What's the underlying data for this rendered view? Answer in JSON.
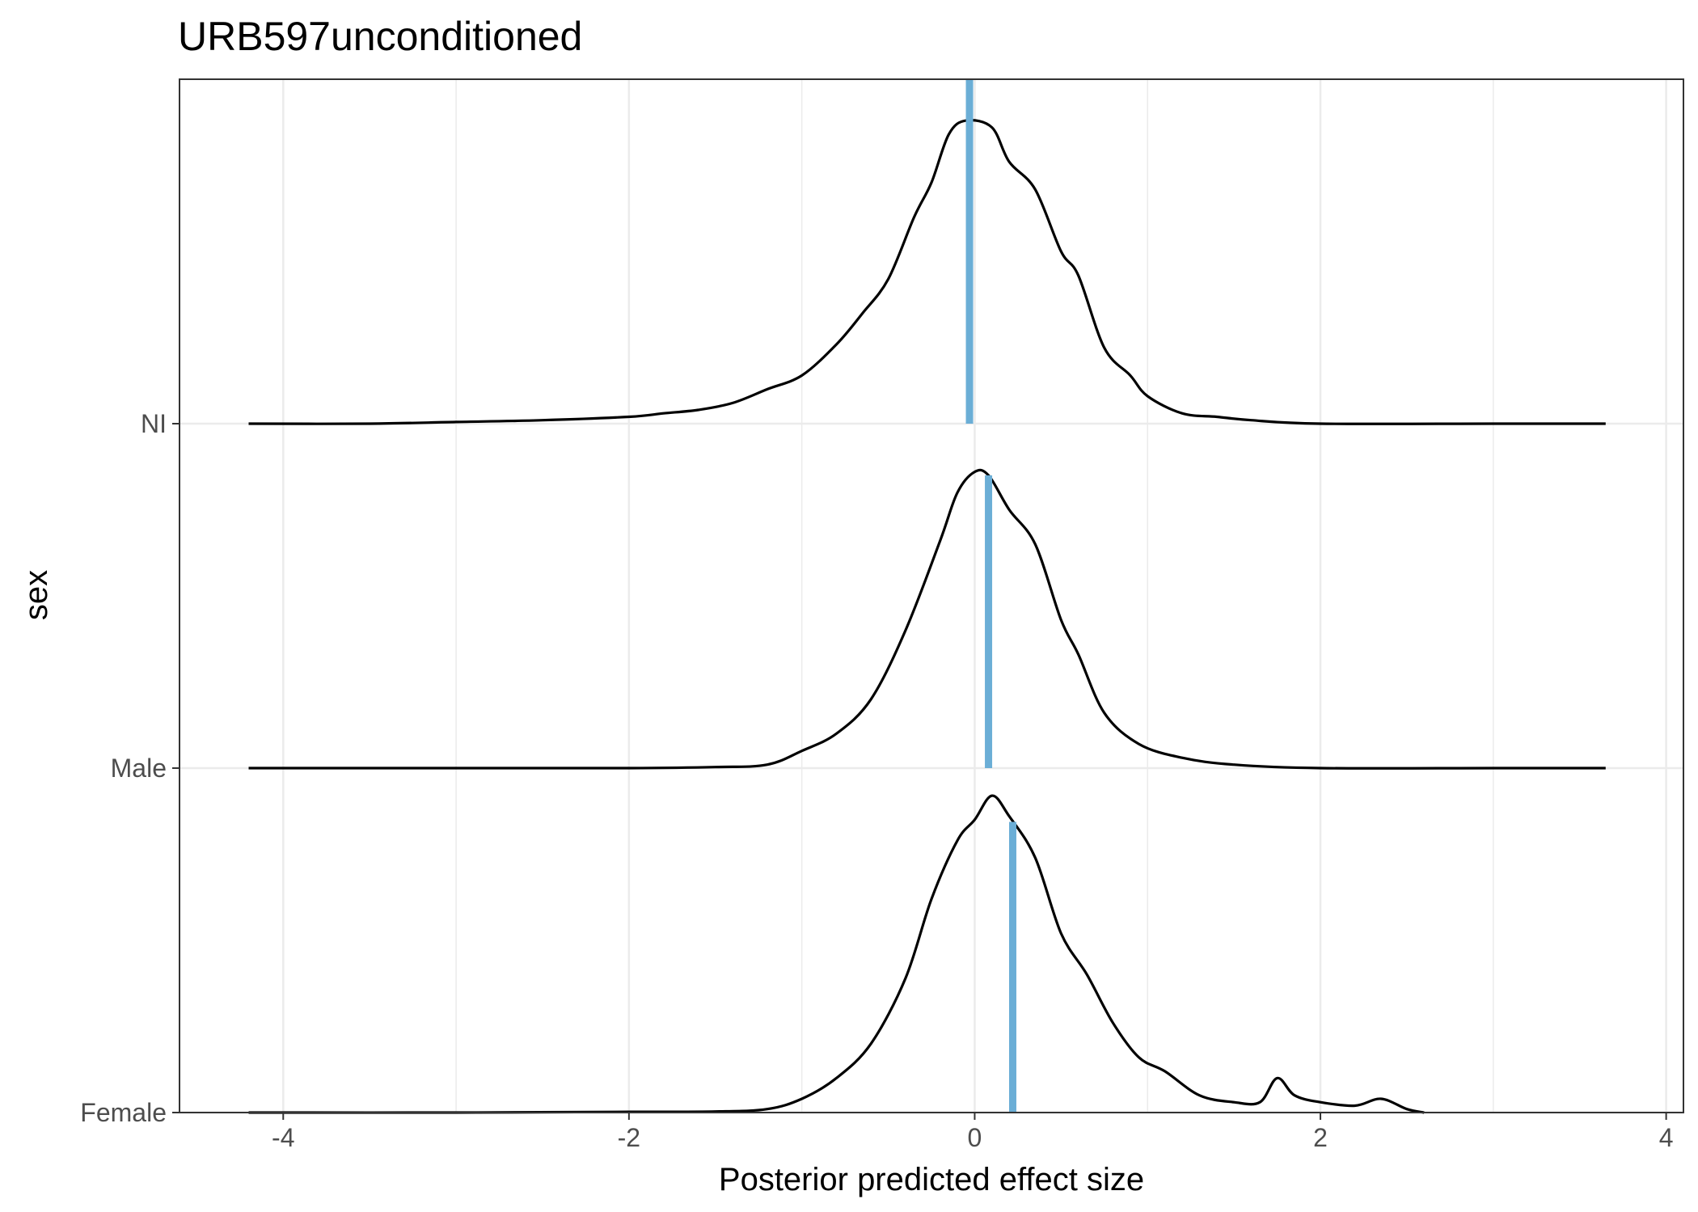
{
  "chart_data": {
    "type": "ridgeline-density",
    "title": "URB597unconditioned",
    "xlabel": "Posterior predicted effect size",
    "ylabel": "sex",
    "xlim": [
      -4.6,
      4.1
    ],
    "x_ticks": [
      -4,
      -2,
      0,
      2,
      4
    ],
    "x_tick_labels": [
      "-4",
      "-2",
      "0",
      "2",
      "4"
    ],
    "categories": [
      "Female",
      "Male",
      "NI"
    ],
    "grid": true,
    "colors": {
      "density_line": "#000000",
      "median_line": "#6baed6",
      "grid": "#ebebeb",
      "panel_border": "#333333"
    },
    "series": [
      {
        "name": "NI",
        "median": -0.03,
        "x": [
          -4.2,
          -3.5,
          -3.0,
          -2.5,
          -2.0,
          -1.8,
          -1.6,
          -1.4,
          -1.2,
          -1.0,
          -0.8,
          -0.65,
          -0.5,
          -0.35,
          -0.25,
          -0.15,
          -0.05,
          0.1,
          0.2,
          0.35,
          0.5,
          0.6,
          0.75,
          0.9,
          1.0,
          1.2,
          1.4,
          1.6,
          2.0,
          3.0,
          3.65
        ],
        "y": [
          0.0,
          0.0,
          0.005,
          0.01,
          0.02,
          0.03,
          0.04,
          0.06,
          0.1,
          0.14,
          0.23,
          0.32,
          0.42,
          0.6,
          0.7,
          0.84,
          0.88,
          0.86,
          0.76,
          0.68,
          0.5,
          0.43,
          0.22,
          0.14,
          0.08,
          0.03,
          0.02,
          0.01,
          0.0,
          0.0,
          0.0
        ]
      },
      {
        "name": "Male",
        "median": 0.08,
        "x": [
          -4.2,
          -3.0,
          -2.0,
          -1.5,
          -1.2,
          -1.0,
          -0.8,
          -0.6,
          -0.4,
          -0.2,
          -0.1,
          0.0,
          0.08,
          0.2,
          0.35,
          0.5,
          0.6,
          0.75,
          0.95,
          1.2,
          1.5,
          2.0,
          3.0,
          3.65
        ],
        "y": [
          0.0,
          0.0,
          0.0,
          0.003,
          0.01,
          0.05,
          0.1,
          0.2,
          0.4,
          0.66,
          0.8,
          0.86,
          0.85,
          0.75,
          0.65,
          0.43,
          0.33,
          0.16,
          0.07,
          0.03,
          0.01,
          0.0,
          0.0,
          0.0
        ]
      },
      {
        "name": "Female",
        "median": 0.22,
        "x": [
          -4.2,
          -3.0,
          -2.0,
          -1.5,
          -1.2,
          -1.0,
          -0.8,
          -0.6,
          -0.4,
          -0.25,
          -0.1,
          0.0,
          0.1,
          0.2,
          0.35,
          0.5,
          0.65,
          0.8,
          0.95,
          1.1,
          1.3,
          1.5,
          1.65,
          1.75,
          1.85,
          2.0,
          2.2,
          2.35,
          2.5,
          2.6
        ],
        "y": [
          0.0,
          0.0,
          0.002,
          0.003,
          0.01,
          0.04,
          0.1,
          0.2,
          0.39,
          0.62,
          0.79,
          0.85,
          0.92,
          0.86,
          0.74,
          0.52,
          0.4,
          0.26,
          0.16,
          0.12,
          0.05,
          0.03,
          0.03,
          0.1,
          0.05,
          0.03,
          0.02,
          0.04,
          0.01,
          0.0
        ]
      }
    ]
  }
}
